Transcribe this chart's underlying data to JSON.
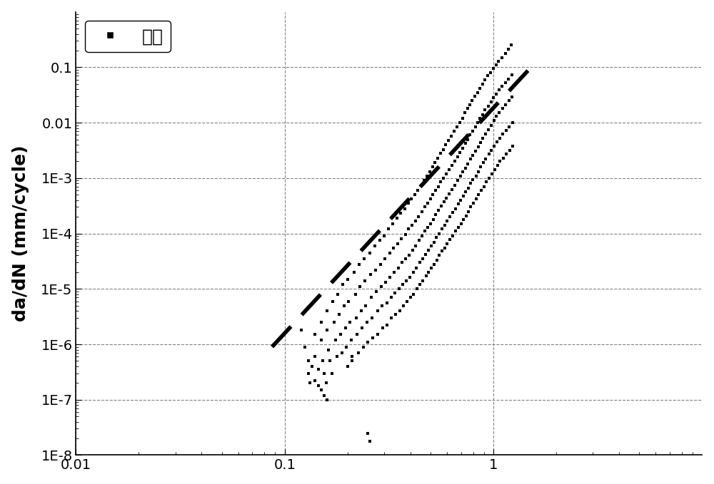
{
  "ylabel": "da/dN (mm/cycle)",
  "xlim": [
    0.01,
    10
  ],
  "ylim": [
    1e-08,
    1.0
  ],
  "legend_label": "蒙皮",
  "background_color": "#ffffff",
  "scatter_color": "#000000",
  "line_color": "#000000",
  "yticks": [
    1e-08,
    1e-07,
    1e-06,
    1e-05,
    0.0001,
    0.001,
    0.01,
    0.1
  ],
  "ylabels": [
    "1E-8",
    "1E-7",
    "1E-6",
    "1E-5",
    "1E-4",
    "1E-3",
    "0.01",
    "0.1"
  ],
  "xticks": [
    0.01,
    0.1,
    1.0
  ],
  "xlabels": [
    "0.01",
    "0.1",
    "1"
  ],
  "fit_line": [
    [
      0.087,
      9e-07
    ],
    [
      1.55,
      0.11
    ]
  ],
  "scatter_points": [
    [
      0.12,
      1.8e-06
    ],
    [
      0.125,
      9e-07
    ],
    [
      0.13,
      5e-07
    ],
    [
      0.13,
      3e-07
    ],
    [
      0.132,
      2e-07
    ],
    [
      0.135,
      4e-07
    ],
    [
      0.14,
      1.5e-06
    ],
    [
      0.14,
      6e-07
    ],
    [
      0.145,
      3.5e-07
    ],
    [
      0.15,
      2.5e-06
    ],
    [
      0.15,
      1.2e-06
    ],
    [
      0.152,
      5e-07
    ],
    [
      0.155,
      3e-07
    ],
    [
      0.158,
      2e-07
    ],
    [
      0.16,
      4e-06
    ],
    [
      0.16,
      1.8e-06
    ],
    [
      0.162,
      8e-07
    ],
    [
      0.165,
      5e-07
    ],
    [
      0.168,
      3e-07
    ],
    [
      0.17,
      6e-06
    ],
    [
      0.172,
      2.5e-06
    ],
    [
      0.175,
      1.2e-06
    ],
    [
      0.178,
      6e-07
    ],
    [
      0.18,
      8e-06
    ],
    [
      0.182,
      3.5e-06
    ],
    [
      0.185,
      1.5e-06
    ],
    [
      0.188,
      7e-07
    ],
    [
      0.19,
      1.2e-05
    ],
    [
      0.192,
      5e-06
    ],
    [
      0.195,
      2e-06
    ],
    [
      0.198,
      9e-07
    ],
    [
      0.2,
      1.5e-05
    ],
    [
      0.202,
      6e-06
    ],
    [
      0.205,
      2.5e-06
    ],
    [
      0.208,
      1.2e-06
    ],
    [
      0.21,
      5e-07
    ],
    [
      0.215,
      2e-05
    ],
    [
      0.218,
      8e-06
    ],
    [
      0.22,
      3e-06
    ],
    [
      0.222,
      1.5e-06
    ],
    [
      0.225,
      7e-07
    ],
    [
      0.228,
      2.8e-05
    ],
    [
      0.23,
      1.1e-05
    ],
    [
      0.233,
      4e-06
    ],
    [
      0.235,
      2e-06
    ],
    [
      0.238,
      9e-07
    ],
    [
      0.24,
      3.5e-05
    ],
    [
      0.242,
      1.4e-05
    ],
    [
      0.245,
      5e-06
    ],
    [
      0.248,
      2.5e-06
    ],
    [
      0.25,
      1.1e-06
    ],
    [
      0.255,
      4.5e-05
    ],
    [
      0.258,
      1.8e-05
    ],
    [
      0.26,
      7e-06
    ],
    [
      0.263,
      3e-06
    ],
    [
      0.265,
      1.3e-06
    ],
    [
      0.27,
      6e-05
    ],
    [
      0.272,
      2.2e-05
    ],
    [
      0.275,
      9e-06
    ],
    [
      0.278,
      4e-06
    ],
    [
      0.28,
      1.5e-06
    ],
    [
      0.285,
      7.5e-05
    ],
    [
      0.288,
      2.8e-05
    ],
    [
      0.29,
      1.1e-05
    ],
    [
      0.293,
      5e-06
    ],
    [
      0.295,
      2e-06
    ],
    [
      0.3,
      9e-05
    ],
    [
      0.303,
      3.5e-05
    ],
    [
      0.305,
      1.3e-05
    ],
    [
      0.308,
      5.5e-06
    ],
    [
      0.31,
      2.2e-06
    ],
    [
      0.315,
      0.00012
    ],
    [
      0.318,
      4.5e-05
    ],
    [
      0.32,
      1.6e-05
    ],
    [
      0.323,
      7e-06
    ],
    [
      0.325,
      3e-06
    ],
    [
      0.33,
      0.00015
    ],
    [
      0.333,
      5.5e-05
    ],
    [
      0.335,
      2e-05
    ],
    [
      0.338,
      8.5e-06
    ],
    [
      0.34,
      3.5e-06
    ],
    [
      0.345,
      0.00019
    ],
    [
      0.348,
      6.5e-05
    ],
    [
      0.35,
      2.4e-05
    ],
    [
      0.353,
      1e-05
    ],
    [
      0.355,
      4e-06
    ],
    [
      0.36,
      0.00023
    ],
    [
      0.363,
      8e-05
    ],
    [
      0.365,
      3e-05
    ],
    [
      0.368,
      1.2e-05
    ],
    [
      0.37,
      5e-06
    ],
    [
      0.375,
      0.00028
    ],
    [
      0.378,
      9.5e-05
    ],
    [
      0.38,
      3.5e-05
    ],
    [
      0.383,
      1.4e-05
    ],
    [
      0.385,
      6e-06
    ],
    [
      0.39,
      0.00035
    ],
    [
      0.393,
      0.00012
    ],
    [
      0.395,
      4e-05
    ],
    [
      0.398,
      1.6e-05
    ],
    [
      0.4,
      7e-06
    ],
    [
      0.405,
      0.00042
    ],
    [
      0.408,
      0.00014
    ],
    [
      0.41,
      5e-05
    ],
    [
      0.413,
      2e-05
    ],
    [
      0.415,
      8e-06
    ],
    [
      0.42,
      0.0005
    ],
    [
      0.423,
      0.00017
    ],
    [
      0.425,
      6e-05
    ],
    [
      0.428,
      2.4e-05
    ],
    [
      0.43,
      1e-05
    ],
    [
      0.435,
      0.0006
    ],
    [
      0.438,
      0.0002
    ],
    [
      0.44,
      7.5e-05
    ],
    [
      0.443,
      3e-05
    ],
    [
      0.445,
      1.2e-05
    ],
    [
      0.45,
      0.00075
    ],
    [
      0.453,
      0.00025
    ],
    [
      0.455,
      9e-05
    ],
    [
      0.458,
      3.5e-05
    ],
    [
      0.46,
      1.4e-05
    ],
    [
      0.465,
      0.0009
    ],
    [
      0.468,
      0.0003
    ],
    [
      0.47,
      0.00011
    ],
    [
      0.473,
      4.2e-05
    ],
    [
      0.475,
      1.7e-05
    ],
    [
      0.48,
      0.0011
    ],
    [
      0.483,
      0.00035
    ],
    [
      0.485,
      0.00013
    ],
    [
      0.488,
      5e-05
    ],
    [
      0.49,
      2e-05
    ],
    [
      0.495,
      0.0013
    ],
    [
      0.498,
      0.00042
    ],
    [
      0.5,
      0.00015
    ],
    [
      0.503,
      6e-05
    ],
    [
      0.505,
      2.4e-05
    ],
    [
      0.51,
      0.0016
    ],
    [
      0.513,
      0.0005
    ],
    [
      0.515,
      0.00018
    ],
    [
      0.518,
      7e-05
    ],
    [
      0.52,
      2.8e-05
    ],
    [
      0.525,
      0.0019
    ],
    [
      0.528,
      0.0006
    ],
    [
      0.53,
      0.00022
    ],
    [
      0.533,
      8.5e-05
    ],
    [
      0.535,
      3.3e-05
    ],
    [
      0.54,
      0.0023
    ],
    [
      0.543,
      0.0007
    ],
    [
      0.545,
      0.00026
    ],
    [
      0.548,
      0.0001
    ],
    [
      0.55,
      4e-05
    ],
    [
      0.558,
      0.0028
    ],
    [
      0.56,
      0.00085
    ],
    [
      0.563,
      0.00031
    ],
    [
      0.565,
      0.00012
    ],
    [
      0.568,
      4.8e-05
    ],
    [
      0.575,
      0.0033
    ],
    [
      0.578,
      0.001
    ],
    [
      0.58,
      0.00037
    ],
    [
      0.583,
      0.00014
    ],
    [
      0.585,
      5.5e-05
    ],
    [
      0.59,
      0.004
    ],
    [
      0.593,
      0.0012
    ],
    [
      0.595,
      0.00044
    ],
    [
      0.598,
      0.00017
    ],
    [
      0.6,
      6.5e-05
    ],
    [
      0.61,
      0.0048
    ],
    [
      0.613,
      0.0014
    ],
    [
      0.615,
      0.00052
    ],
    [
      0.618,
      0.0002
    ],
    [
      0.62,
      7.8e-05
    ],
    [
      0.63,
      0.0058
    ],
    [
      0.633,
      0.0017
    ],
    [
      0.635,
      0.00062
    ],
    [
      0.638,
      0.00024
    ],
    [
      0.64,
      9e-05
    ],
    [
      0.65,
      0.007
    ],
    [
      0.653,
      0.002
    ],
    [
      0.655,
      0.00075
    ],
    [
      0.658,
      0.00028
    ],
    [
      0.66,
      0.00011
    ],
    [
      0.67,
      0.0085
    ],
    [
      0.673,
      0.0024
    ],
    [
      0.675,
      0.0009
    ],
    [
      0.678,
      0.00034
    ],
    [
      0.68,
      0.00013
    ],
    [
      0.69,
      0.01
    ],
    [
      0.693,
      0.0029
    ],
    [
      0.695,
      0.0011
    ],
    [
      0.698,
      0.0004
    ],
    [
      0.7,
      0.00015
    ],
    [
      0.71,
      0.012
    ],
    [
      0.713,
      0.0035
    ],
    [
      0.715,
      0.0013
    ],
    [
      0.718,
      0.00048
    ],
    [
      0.72,
      0.00018
    ],
    [
      0.73,
      0.015
    ],
    [
      0.733,
      0.0042
    ],
    [
      0.735,
      0.0015
    ],
    [
      0.738,
      0.00056
    ],
    [
      0.74,
      0.00021
    ],
    [
      0.75,
      0.018
    ],
    [
      0.753,
      0.005
    ],
    [
      0.755,
      0.0018
    ],
    [
      0.758,
      0.00066
    ],
    [
      0.76,
      0.00025
    ],
    [
      0.77,
      0.021
    ],
    [
      0.773,
      0.006
    ],
    [
      0.775,
      0.0022
    ],
    [
      0.778,
      0.0008
    ],
    [
      0.78,
      0.0003
    ],
    [
      0.79,
      0.025
    ],
    [
      0.793,
      0.007
    ],
    [
      0.795,
      0.0026
    ],
    [
      0.798,
      0.00095
    ],
    [
      0.8,
      0.00035
    ],
    [
      0.815,
      0.03
    ],
    [
      0.818,
      0.0085
    ],
    [
      0.82,
      0.0031
    ],
    [
      0.825,
      0.0011
    ],
    [
      0.828,
      0.00042
    ],
    [
      0.84,
      0.035
    ],
    [
      0.843,
      0.01
    ],
    [
      0.845,
      0.0037
    ],
    [
      0.848,
      0.0013
    ],
    [
      0.85,
      0.0005
    ],
    [
      0.86,
      0.042
    ],
    [
      0.863,
      0.012
    ],
    [
      0.865,
      0.0044
    ],
    [
      0.87,
      0.0016
    ],
    [
      0.875,
      0.0006
    ],
    [
      0.885,
      0.05
    ],
    [
      0.888,
      0.014
    ],
    [
      0.89,
      0.0052
    ],
    [
      0.895,
      0.0019
    ],
    [
      0.9,
      0.0007
    ],
    [
      0.91,
      0.06
    ],
    [
      0.913,
      0.017
    ],
    [
      0.915,
      0.0062
    ],
    [
      0.92,
      0.0022
    ],
    [
      0.925,
      0.00085
    ],
    [
      0.94,
      0.07
    ],
    [
      0.943,
      0.02
    ],
    [
      0.945,
      0.0075
    ],
    [
      0.95,
      0.0027
    ],
    [
      0.955,
      0.001
    ],
    [
      0.97,
      0.08
    ],
    [
      0.973,
      0.024
    ],
    [
      0.975,
      0.009
    ],
    [
      0.98,
      0.0032
    ],
    [
      0.985,
      0.0012
    ],
    [
      1.0,
      0.095
    ],
    [
      1.003,
      0.028
    ],
    [
      1.005,
      0.011
    ],
    [
      1.01,
      0.0038
    ],
    [
      1.015,
      0.0014
    ],
    [
      1.03,
      0.11
    ],
    [
      1.033,
      0.033
    ],
    [
      1.035,
      0.013
    ],
    [
      1.04,
      0.0045
    ],
    [
      1.045,
      0.0017
    ],
    [
      1.06,
      0.13
    ],
    [
      1.063,
      0.039
    ],
    [
      1.065,
      0.015
    ],
    [
      1.07,
      0.0053
    ],
    [
      1.075,
      0.002
    ],
    [
      1.1,
      0.15
    ],
    [
      1.103,
      0.045
    ],
    [
      1.105,
      0.018
    ],
    [
      1.11,
      0.0062
    ],
    [
      1.115,
      0.0023
    ],
    [
      1.14,
      0.18
    ],
    [
      1.143,
      0.053
    ],
    [
      1.145,
      0.021
    ],
    [
      1.15,
      0.0073
    ],
    [
      1.155,
      0.0027
    ],
    [
      1.18,
      0.21
    ],
    [
      1.183,
      0.062
    ],
    [
      1.185,
      0.025
    ],
    [
      1.19,
      0.0085
    ],
    [
      1.195,
      0.0032
    ],
    [
      1.22,
      0.25
    ],
    [
      1.225,
      0.073
    ],
    [
      1.228,
      0.029
    ],
    [
      1.233,
      0.01
    ],
    [
      1.238,
      0.0038
    ],
    [
      0.14,
      2.2e-07
    ],
    [
      0.145,
      1.8e-07
    ],
    [
      0.15,
      1.5e-07
    ],
    [
      0.155,
      1.2e-07
    ],
    [
      0.16,
      1e-07
    ],
    [
      0.2,
      4e-07
    ],
    [
      0.21,
      6e-07
    ],
    [
      0.25,
      2.5e-08
    ],
    [
      0.255,
      1.8e-08
    ]
  ]
}
